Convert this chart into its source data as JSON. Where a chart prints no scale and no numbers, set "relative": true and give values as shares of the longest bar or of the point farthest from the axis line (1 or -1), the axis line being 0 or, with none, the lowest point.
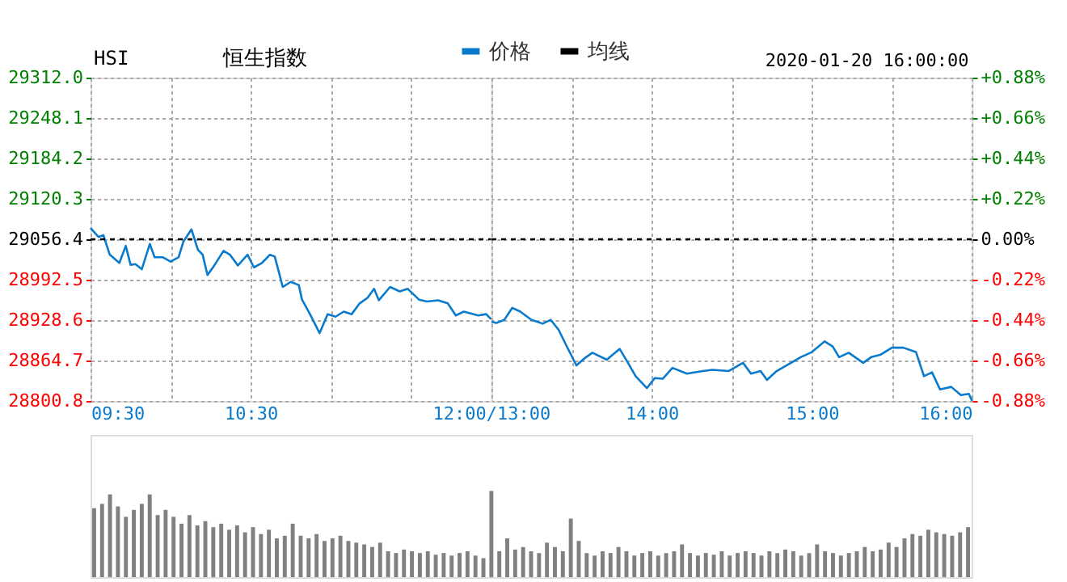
{
  "chart_data": [
    {
      "type": "line",
      "title": "HSI",
      "subtitle": "恒生指数",
      "xlim": [
        9.5,
        12
      ],
      "xticks": [
        {
          "value": 9.5,
          "label": "09:30"
        },
        {
          "value": 10,
          "label": null
        },
        {
          "value": 10.5,
          "label": "10:30"
        },
        {
          "value": 11,
          "label": null
        },
        {
          "value": 11.5,
          "label": null
        },
        {
          "value": 12,
          "label": "12:00/13:00"
        }
      ],
      "ylim": [
        28800.8,
        29312.0
      ],
      "yticks": [
        {
          "value": 28800.8,
          "label": "28800.8"
        },
        {
          "value": 28864.7,
          "label": "28864.7"
        },
        {
          "value": 28928.6,
          "label": "28928.6"
        },
        {
          "value": 28992.5,
          "label": "28992.5"
        },
        {
          "value": 29056.4,
          "label": "29056.4"
        },
        {
          "value": 29120.3,
          "label": "29120.3"
        },
        {
          "value": 29184.2,
          "label": "29184.2"
        },
        {
          "value": 29248.1,
          "label": "29248.1"
        },
        {
          "value": 29312.0,
          "label": "29312.0"
        }
      ],
      "grid": true,
      "legend": "top",
      "series": [
        {
          "name": "价格",
          "color": "#0a7acc",
          "line_style": "solid",
          "x": [
            9.5,
            9.55,
            9.58,
            9.62,
            9.68,
            9.72,
            9.75,
            9.78,
            9.82,
            9.87,
            9.9,
            9.95,
            10,
            10.05,
            10.08,
            10.13,
            10.17,
            10.2,
            10.23,
            10.27,
            10.33,
            10.37,
            10.42,
            10.48,
            10.52,
            10.57,
            10.62,
            10.65,
            10.7,
            10.75,
            10.8,
            10.82,
            10.87,
            10.93,
            10.98,
            11.03,
            11.08,
            11.13,
            11.18,
            11.23,
            11.27,
            11.3,
            11.37,
            11.43,
            11.48,
            11.55,
            11.6,
            11.67,
            11.73,
            11.78,
            11.83,
            11.92,
            11.97,
            12
          ],
          "values": [
            29074,
            29060,
            29063,
            29032,
            29019,
            29046,
            29016,
            29017,
            29009,
            29049,
            29028,
            29028,
            29021,
            29028,
            29053,
            29072,
            29040,
            29032,
            29000,
            29014,
            29038,
            29032,
            29015,
            29032,
            29012,
            29019,
            29032,
            29029,
            28981,
            28989,
            28984,
            28961,
            28938,
            28908,
            28938,
            28934,
            28942,
            28938,
            28955,
            28964,
            28978,
            28960,
            28981,
            28974,
            28978,
            28961,
            28958,
            28960,
            28955,
            28936,
            28942,
            28936,
            28938,
            28930
          ]
        },
        {
          "name": "均线",
          "color": "#000000",
          "line_style": "dashed",
          "x": [
            9.5,
            12
          ],
          "values": [
            29056.4,
            29056.4
          ]
        }
      ]
    },
    {
      "type": "line",
      "annotations": [
        "2020-01-20 16:00:00"
      ],
      "xlim": [
        13,
        16
      ],
      "xticks": [
        {
          "value": 13,
          "label": null
        },
        {
          "value": 13.5,
          "label": null
        },
        {
          "value": 14,
          "label": "14:00"
        },
        {
          "value": 14.5,
          "label": null
        },
        {
          "value": 15,
          "label": "15:00"
        },
        {
          "value": 15.5,
          "label": null
        },
        {
          "value": 16,
          "label": "16:00"
        }
      ],
      "ylim": [
        28800.8,
        29312.0
      ],
      "y2lim": [
        -0.88,
        0.88
      ],
      "y2ticks": [
        {
          "value": -0.88,
          "label": "-0.88%"
        },
        {
          "value": -0.66,
          "label": "-0.66%"
        },
        {
          "value": -0.44,
          "label": "-0.44%"
        },
        {
          "value": -0.22,
          "label": "-0.22%"
        },
        {
          "value": 0,
          "label": "0.00%"
        },
        {
          "value": 0.22,
          "label": "+0.22%"
        },
        {
          "value": 0.44,
          "label": "+0.44%"
        },
        {
          "value": 0.66,
          "label": "+0.66%"
        },
        {
          "value": 0.88,
          "label": "+0.88%"
        }
      ],
      "grid": true,
      "series": [
        {
          "color": "#0a7acc",
          "line_style": "solid",
          "x": [
            13,
            13.03,
            13.08,
            13.13,
            13.18,
            13.25,
            13.32,
            13.37,
            13.42,
            13.47,
            13.53,
            13.58,
            13.63,
            13.72,
            13.8,
            13.85,
            13.9,
            13.97,
            14.02,
            14.07,
            14.13,
            14.22,
            14.32,
            14.38,
            14.48,
            14.57,
            14.62,
            14.68,
            14.72,
            14.78,
            14.87,
            14.93,
            15,
            15.08,
            15.13,
            15.17,
            15.23,
            15.32,
            15.37,
            15.43,
            15.5,
            15.57,
            15.65,
            15.7,
            15.75,
            15.8,
            15.87,
            15.93,
            15.98,
            16
          ],
          "values": [
            28926,
            28924,
            28929,
            28948,
            28942,
            28929,
            28923,
            28929,
            28913,
            28887,
            28857,
            28868,
            28877,
            28866,
            28883,
            28862,
            28840,
            28821,
            28837,
            28836,
            28853,
            28844,
            28848,
            28850,
            28848,
            28861,
            28844,
            28848,
            28834,
            28848,
            28861,
            28870,
            28878,
            28895,
            28887,
            28870,
            28877,
            28861,
            28870,
            28874,
            28885,
            28885,
            28878,
            28840,
            28846,
            28819,
            28823,
            28810,
            28812,
            28801
          ]
        },
        {
          "color": "#000000",
          "line_style": "dashed",
          "x": [
            13,
            16
          ],
          "values": [
            29056.4,
            29056.4
          ]
        }
      ]
    },
    {
      "type": "bar",
      "relative": true,
      "color": "#808080",
      "categories": [
        null,
        null,
        null,
        null,
        null,
        null,
        null,
        null,
        null,
        null,
        null,
        null,
        null,
        null,
        null,
        null,
        null,
        null,
        null,
        null,
        null,
        null,
        null,
        null,
        null,
        null,
        null,
        null,
        null,
        null,
        null,
        null,
        null,
        null,
        null,
        null,
        null,
        null,
        null,
        null,
        null,
        null,
        null,
        null,
        null,
        null,
        null,
        null,
        null,
        null,
        null,
        null,
        null,
        null,
        null,
        null,
        null,
        null,
        null,
        null,
        null,
        null,
        null,
        null,
        null,
        null,
        null,
        null,
        null,
        null,
        null,
        null,
        null,
        null,
        null,
        null,
        null,
        null,
        null,
        null,
        null,
        null,
        null,
        null,
        null,
        null,
        null,
        null,
        null,
        null,
        null,
        null,
        null,
        null,
        null,
        null,
        null,
        null,
        null,
        null,
        null,
        null,
        null,
        null,
        null,
        null,
        null,
        null,
        null,
        null,
        null
      ],
      "values": [
        0.8,
        0.85,
        0.96,
        0.82,
        0.7,
        0.78,
        0.85,
        0.96,
        0.72,
        0.78,
        0.7,
        0.62,
        0.72,
        0.6,
        0.65,
        0.58,
        0.62,
        0.55,
        0.6,
        0.52,
        0.58,
        0.5,
        0.55,
        0.45,
        0.48,
        0.62,
        0.48,
        0.45,
        0.5,
        0.42,
        0.45,
        0.48,
        0.42,
        0.4,
        0.38,
        0.35,
        0.4,
        0.3,
        0.28,
        0.32,
        0.3,
        0.28,
        0.3,
        0.26,
        0.28,
        0.25,
        0.28,
        0.3,
        0.25,
        0.22,
        1.0,
        0.3,
        0.45,
        0.32,
        0.35,
        0.3,
        0.28,
        0.4,
        0.35,
        0.3,
        0.68,
        0.42,
        0.28,
        0.25,
        0.3,
        0.28,
        0.35,
        0.3,
        0.25,
        0.28,
        0.3,
        0.25,
        0.28,
        0.3,
        0.38,
        0.28,
        0.25,
        0.28,
        0.26,
        0.3,
        0.25,
        0.28,
        0.3,
        0.28,
        0.25,
        0.3,
        0.28,
        0.32,
        0.3,
        0.25,
        0.28,
        0.38,
        0.3,
        0.28,
        0.25,
        0.28,
        0.3,
        0.35,
        0.3,
        0.32,
        0.4,
        0.35,
        0.45,
        0.5,
        0.48,
        0.55,
        0.52,
        0.5,
        0.48,
        0.52,
        0.58
      ]
    }
  ]
}
